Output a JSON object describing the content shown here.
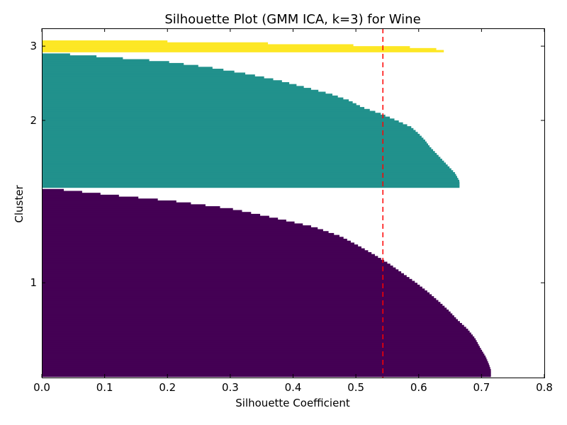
{
  "chart_data": {
    "type": "silhouette",
    "title": "Silhouette Plot (GMM ICA, k=3) for Wine",
    "xlabel": "Silhouette Coefficient",
    "ylabel": "Cluster",
    "xlim": [
      0.0,
      0.8
    ],
    "xticks": [
      "0.0",
      "0.1",
      "0.2",
      "0.3",
      "0.4",
      "0.5",
      "0.6",
      "0.7",
      "0.8"
    ],
    "yticks": [
      "1",
      "2",
      "3"
    ],
    "grid": false,
    "average_silhouette": 0.543,
    "average_line_color": "#ff0000",
    "clusters": [
      {
        "label": "1",
        "color": "#440154",
        "size": 98,
        "profile": [
          [
            0.0,
            0.715
          ],
          [
            0.03,
            0.715
          ],
          [
            0.06,
            0.712
          ],
          [
            0.1,
            0.707
          ],
          [
            0.15,
            0.698
          ],
          [
            0.2,
            0.69
          ],
          [
            0.25,
            0.678
          ],
          [
            0.3,
            0.662
          ],
          [
            0.35,
            0.648
          ],
          [
            0.4,
            0.632
          ],
          [
            0.45,
            0.615
          ],
          [
            0.5,
            0.596
          ],
          [
            0.55,
            0.575
          ],
          [
            0.6,
            0.554
          ],
          [
            0.65,
            0.53
          ],
          [
            0.7,
            0.504
          ],
          [
            0.75,
            0.476
          ],
          [
            0.8,
            0.434
          ],
          [
            0.85,
            0.37
          ],
          [
            0.9,
            0.3
          ],
          [
            0.94,
            0.21
          ],
          [
            0.97,
            0.12
          ],
          [
            1.0,
            0.035
          ]
        ]
      },
      {
        "label": "2",
        "color": "#21918c",
        "size": 70,
        "profile": [
          [
            0.0,
            0.665
          ],
          [
            0.04,
            0.665
          ],
          [
            0.1,
            0.658
          ],
          [
            0.15,
            0.648
          ],
          [
            0.2,
            0.638
          ],
          [
            0.25,
            0.628
          ],
          [
            0.3,
            0.618
          ],
          [
            0.35,
            0.61
          ],
          [
            0.4,
            0.6
          ],
          [
            0.45,
            0.588
          ],
          [
            0.5,
            0.565
          ],
          [
            0.55,
            0.54
          ],
          [
            0.6,
            0.51
          ],
          [
            0.65,
            0.49
          ],
          [
            0.7,
            0.46
          ],
          [
            0.75,
            0.42
          ],
          [
            0.8,
            0.38
          ],
          [
            0.85,
            0.33
          ],
          [
            0.9,
            0.27
          ],
          [
            0.95,
            0.19
          ],
          [
            1.0,
            0.045
          ]
        ]
      },
      {
        "label": "3",
        "color": "#fde725",
        "size": 6,
        "profile": [
          [
            0.0,
            0.64
          ],
          [
            0.25,
            0.625
          ],
          [
            0.5,
            0.56
          ],
          [
            0.75,
            0.4
          ],
          [
            1.0,
            0.2
          ]
        ]
      }
    ]
  }
}
